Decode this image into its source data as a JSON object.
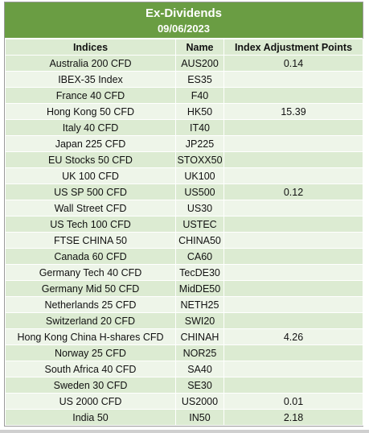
{
  "header": {
    "title": "Ex-Dividends",
    "date": "09/06/2023"
  },
  "columns": [
    "Indices",
    "Name",
    "Index Adjustment Points"
  ],
  "rows": [
    {
      "index": "Australia 200 CFD",
      "name": "AUS200",
      "points": "0.14"
    },
    {
      "index": "IBEX-35 Index",
      "name": "ES35",
      "points": ""
    },
    {
      "index": "France 40 CFD",
      "name": "F40",
      "points": ""
    },
    {
      "index": "Hong Kong 50 CFD",
      "name": "HK50",
      "points": "15.39"
    },
    {
      "index": "Italy 40 CFD",
      "name": "IT40",
      "points": ""
    },
    {
      "index": "Japan 225 CFD",
      "name": "JP225",
      "points": ""
    },
    {
      "index": "EU Stocks 50 CFD",
      "name": "STOXX50",
      "points": ""
    },
    {
      "index": "UK 100 CFD",
      "name": "UK100",
      "points": ""
    },
    {
      "index": "US SP 500 CFD",
      "name": "US500",
      "points": "0.12"
    },
    {
      "index": "Wall Street CFD",
      "name": "US30",
      "points": ""
    },
    {
      "index": "US Tech 100 CFD",
      "name": "USTEC",
      "points": ""
    },
    {
      "index": "FTSE CHINA 50",
      "name": "CHINA50",
      "points": ""
    },
    {
      "index": "Canada 60 CFD",
      "name": "CA60",
      "points": ""
    },
    {
      "index": "Germany Tech 40 CFD",
      "name": "TecDE30",
      "points": ""
    },
    {
      "index": "Germany Mid 50 CFD",
      "name": "MidDE50",
      "points": ""
    },
    {
      "index": "Netherlands 25 CFD",
      "name": "NETH25",
      "points": ""
    },
    {
      "index": "Switzerland 20 CFD",
      "name": "SWI20",
      "points": ""
    },
    {
      "index": "Hong Kong China H-shares CFD",
      "name": "CHINAH",
      "points": "4.26"
    },
    {
      "index": "Norway 25 CFD",
      "name": "NOR25",
      "points": ""
    },
    {
      "index": "South Africa 40 CFD",
      "name": "SA40",
      "points": ""
    },
    {
      "index": "Sweden 30 CFD",
      "name": "SE30",
      "points": ""
    },
    {
      "index": "US 2000 CFD",
      "name": "US2000",
      "points": "0.01"
    },
    {
      "index": "India 50",
      "name": "IN50",
      "points": "2.18"
    }
  ],
  "colors": {
    "title_band": "#6a9d43",
    "row_dark": "#dcebd2",
    "row_light": "#eef5e9"
  }
}
